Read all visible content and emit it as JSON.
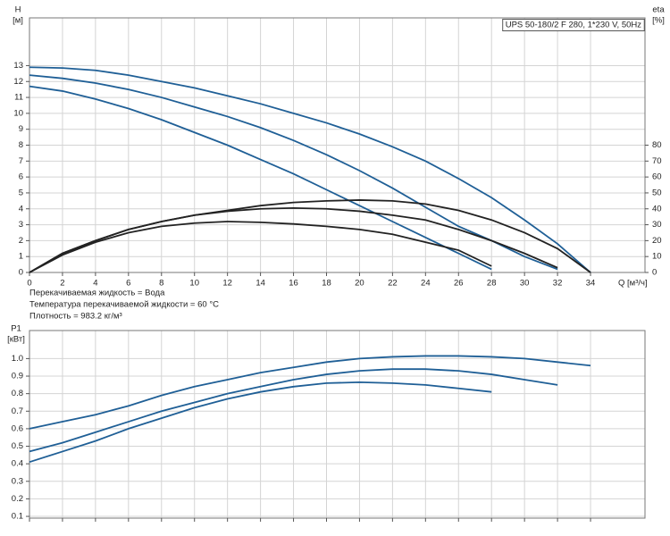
{
  "chart_data": [
    {
      "type": "line",
      "title": "UPS 50-180/2 F 280, 1*230 V, 50Hz",
      "y_label": "H",
      "y_unit": "[м]",
      "y2_label": "eta",
      "y2_unit": "[%]",
      "x_label": "Q [м³/ч]",
      "notes": [
        "Перекачиваемая жидкость = Вода",
        "Температура перекачиваемой жидкости = 60 °C",
        "Плотность = 983.2 кг/м³"
      ],
      "grid": true,
      "xlim": [
        0,
        37.3
      ],
      "xticks": [
        0,
        2,
        4,
        6,
        8,
        10,
        12,
        14,
        16,
        18,
        20,
        22,
        24,
        26,
        28,
        30,
        32,
        34
      ],
      "ylim": [
        0,
        16
      ],
      "yticks": [
        0,
        1,
        2,
        3,
        4,
        5,
        6,
        7,
        8,
        9,
        10,
        11,
        12,
        13
      ],
      "y2lim": [
        0,
        160
      ],
      "y2ticks": [
        0,
        10,
        20,
        30,
        40,
        50,
        60,
        70,
        80
      ],
      "x": [
        0,
        2,
        4,
        6,
        8,
        10,
        12,
        14,
        16,
        18,
        20,
        22,
        24,
        26,
        28,
        30,
        32,
        34
      ],
      "series": [
        {
          "color": "#1f5f96",
          "values": [
            12.9,
            12.85,
            12.7,
            12.4,
            12.0,
            11.6,
            11.1,
            10.6,
            10.0,
            9.4,
            8.7,
            7.9,
            7.0,
            5.9,
            4.7,
            3.3,
            1.8,
            0
          ]
        },
        {
          "color": "#1f5f96",
          "values": [
            12.4,
            12.2,
            11.9,
            11.5,
            11.0,
            10.4,
            9.8,
            9.1,
            8.3,
            7.4,
            6.4,
            5.3,
            4.1,
            2.9,
            2.0,
            1.0,
            0.2,
            null
          ]
        },
        {
          "color": "#1f5f96",
          "values": [
            11.7,
            11.4,
            10.9,
            10.3,
            9.6,
            8.8,
            8.0,
            7.1,
            6.2,
            5.2,
            4.2,
            3.2,
            2.2,
            1.2,
            0.2,
            null,
            null,
            null
          ]
        },
        {
          "color": "#222222",
          "axis": "y2",
          "values": [
            0,
            12,
            20,
            27,
            32,
            36,
            39,
            42,
            44,
            45,
            45.5,
            45,
            43,
            39,
            33,
            25,
            15,
            0
          ]
        },
        {
          "color": "#222222",
          "axis": "y2",
          "values": [
            0,
            12,
            20,
            27,
            32,
            36,
            38.5,
            40,
            40.5,
            40,
            38.5,
            36,
            33,
            27,
            20,
            12,
            3,
            null
          ]
        },
        {
          "color": "#222222",
          "axis": "y2",
          "values": [
            0,
            11,
            19,
            25,
            29,
            31,
            32,
            31.5,
            30.5,
            29,
            27,
            24,
            19,
            14,
            4,
            null,
            null,
            null
          ]
        }
      ]
    },
    {
      "type": "line",
      "y_label": "P1",
      "y_unit": "[кВт]",
      "grid": true,
      "xlim": [
        0,
        37.3
      ],
      "xticks": [
        0,
        2,
        4,
        6,
        8,
        10,
        12,
        14,
        16,
        18,
        20,
        22,
        24,
        26,
        28,
        30,
        32,
        34
      ],
      "ylim": [
        0.09,
        1.16
      ],
      "yticks": [
        0.1,
        0.2,
        0.3,
        0.4,
        0.5,
        0.6,
        0.7,
        0.8,
        0.9,
        {
          "value": 1,
          "label": "1.0"
        }
      ],
      "x": [
        0,
        2,
        4,
        6,
        8,
        10,
        12,
        14,
        16,
        18,
        20,
        22,
        24,
        26,
        28,
        30,
        32,
        34
      ],
      "series": [
        {
          "color": "#1f5f96",
          "values": [
            0.6,
            0.64,
            0.68,
            0.73,
            0.79,
            0.84,
            0.88,
            0.92,
            0.95,
            0.98,
            1.0,
            1.01,
            1.015,
            1.015,
            1.01,
            1.0,
            0.98,
            0.96
          ]
        },
        {
          "color": "#1f5f96",
          "values": [
            0.47,
            0.52,
            0.58,
            0.64,
            0.7,
            0.75,
            0.8,
            0.84,
            0.88,
            0.91,
            0.93,
            0.94,
            0.94,
            0.93,
            0.91,
            0.88,
            0.85,
            null
          ]
        },
        {
          "color": "#1f5f96",
          "values": [
            0.41,
            0.47,
            0.53,
            0.6,
            0.66,
            0.72,
            0.77,
            0.81,
            0.84,
            0.86,
            0.865,
            0.86,
            0.85,
            0.83,
            0.81,
            null,
            null,
            null
          ]
        }
      ]
    }
  ]
}
